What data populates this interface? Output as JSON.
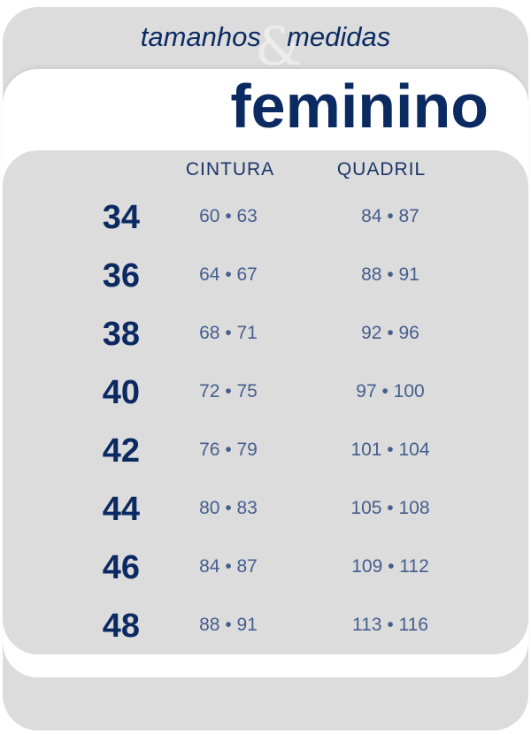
{
  "header": {
    "subtitle_left": "tamanhos",
    "ampersand": "&",
    "subtitle_right": "medidas",
    "title": "feminino"
  },
  "columns": {
    "waist": "CINTURA",
    "hip": "QUADRIL"
  },
  "rows": [
    {
      "size": "34",
      "waist": "60 • 63",
      "hip": "84 • 87"
    },
    {
      "size": "36",
      "waist": "64 • 67",
      "hip": "88 • 91"
    },
    {
      "size": "38",
      "waist": "68 • 71",
      "hip": "92 • 96"
    },
    {
      "size": "40",
      "waist": "72 • 75",
      "hip": "97 • 100"
    },
    {
      "size": "42",
      "waist": "76 • 79",
      "hip": "101 • 104"
    },
    {
      "size": "44",
      "waist": "80 • 83",
      "hip": "105 • 108"
    },
    {
      "size": "46",
      "waist": "84 • 87",
      "hip": "109 • 112"
    },
    {
      "size": "48",
      "waist": "88 • 91",
      "hip": "113 • 116"
    }
  ],
  "colors": {
    "navy": "#0c2a62",
    "panel": "#dcdcdc",
    "values": "#455e8e"
  }
}
